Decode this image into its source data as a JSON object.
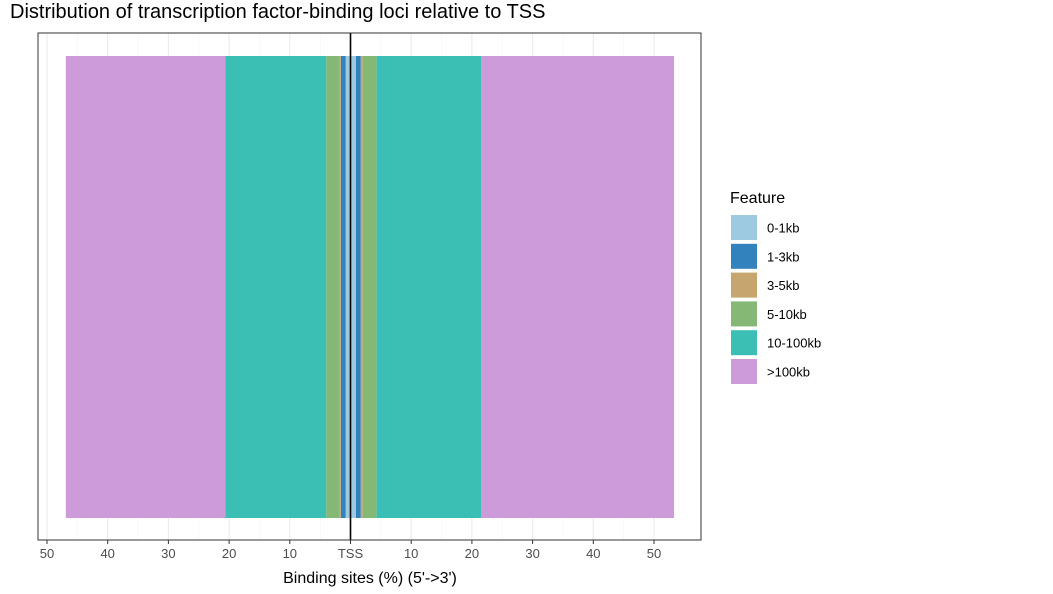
{
  "chart_data": {
    "type": "bar",
    "orientation": "horizontal-diverging",
    "title": "Distribution of transcription factor-binding loci relative to TSS",
    "xlabel": "Binding sites (%) (5'->3')",
    "ylabel": "",
    "xlim": [
      -50,
      50
    ],
    "tick_values": [
      -50,
      -40,
      -30,
      -20,
      -10,
      0,
      10,
      20,
      30,
      40,
      50
    ],
    "tick_labels": [
      "50",
      "40",
      "30",
      "20",
      "10",
      "TSS",
      "10",
      "20",
      "30",
      "40",
      "50"
    ],
    "grid": true,
    "legend": {
      "title": "Feature",
      "position": "right"
    },
    "series": [
      {
        "name": "0-1kb",
        "color": "#9ECAE1",
        "upstream": 0.8,
        "downstream": 0.9
      },
      {
        "name": "1-3kb",
        "color": "#3182BD",
        "upstream": 0.8,
        "downstream": 0.8
      },
      {
        "name": "3-5kb",
        "color": "#C6A66E",
        "upstream": 0.3,
        "downstream": 0.3
      },
      {
        "name": "5-10kb",
        "color": "#86B875",
        "upstream": 2.1,
        "downstream": 2.3
      },
      {
        "name": "10-100kb",
        "color": "#3BBEB4",
        "upstream": 16.6,
        "downstream": 17.2
      },
      {
        "name": ">100kb",
        "color": "#CD9BDA",
        "upstream": 26.3,
        "downstream": 31.8
      }
    ]
  }
}
